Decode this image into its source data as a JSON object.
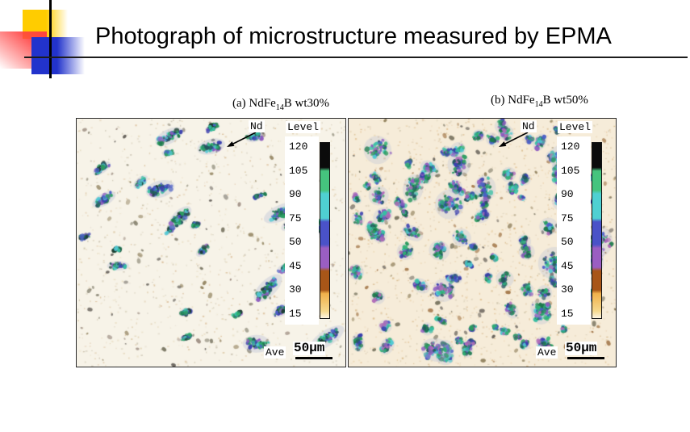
{
  "title": "Photograph of microstructure measured by EPMA",
  "decoration": {
    "yellow": "#ffcc00",
    "red": "#ff4040",
    "blue": "#2233cc",
    "line": "#000000"
  },
  "colorbar": {
    "stops": [
      "#0b0b0b 0%",
      "#0b0b0b 14%",
      "#45c47e 16%",
      "#45c47e 27%",
      "#4fd0d2 29%",
      "#4fd0d2 43%",
      "#4a52c8 45%",
      "#4a52c8 58%",
      "#9a5ec2 60%",
      "#9a5ec2 71%",
      "#a85618 73%",
      "#a85618 84%",
      "#f0b14b 86%",
      "#f6d98e 96%",
      "#fdf6e3 100%"
    ]
  },
  "panels": [
    {
      "caption": {
        "pre": "(a) NdFe",
        "sub": "14",
        "post": "B wt30%"
      },
      "nd_label": "Nd",
      "level_label": "Level",
      "level_ticks": [
        "120",
        "105",
        "90",
        "75",
        "50",
        "45",
        "30",
        "15"
      ],
      "ave_label": "Ave",
      "scale_label": "50µm",
      "render": {
        "seed": 11,
        "background": "#f7f3e8",
        "speckles": 1000,
        "speckle_colors": [
          "#e2d3b0",
          "#d4bd92",
          "#c2b79b",
          "#cfa877",
          "#b5ab96"
        ],
        "dots": 120,
        "dot_colors": [
          "#6e6a56",
          "#8a7a55",
          "#97867b",
          "#56514b"
        ],
        "blobs": 26,
        "big_blobs": 3,
        "len_min": 10,
        "len_max": 30,
        "ang_base": -25,
        "ang_var": 50,
        "aspect_min": 0.28,
        "aspect_var": 0.22,
        "halo": "#a9b4d2",
        "blob_colors": [
          "#2eb273",
          "#1d7a4c",
          "#37bfa4",
          "#52c9d3",
          "#4b5ec6",
          "#3a3fae",
          "#8e5cc0",
          "#24555e",
          "#2c9b60",
          "#1b3a2e"
        ]
      }
    },
    {
      "caption": {
        "pre": "(b) NdFe",
        "sub": "14",
        "post": "B wt50%"
      },
      "nd_label": "Nd",
      "level_label": "Level",
      "level_ticks": [
        "120",
        "105",
        "90",
        "75",
        "50",
        "45",
        "30",
        "15"
      ],
      "ave_label": "Ave",
      "scale_label": "50µm",
      "render": {
        "seed": 5,
        "background": "#f6ecd9",
        "speckles": 1400,
        "speckle_colors": [
          "#e8cc9e",
          "#dcb27a",
          "#cba368",
          "#bfb497",
          "#d9c2a2"
        ],
        "dots": 170,
        "dot_colors": [
          "#6e6a56",
          "#9a6a3a",
          "#8a7a55",
          "#56514b"
        ],
        "blobs": 95,
        "big_blobs": 14,
        "len_min": 6,
        "len_max": 20,
        "ang_base": 0,
        "ang_var": 360,
        "aspect_min": 0.5,
        "aspect_var": 0.35,
        "halo": "#b4bdd8",
        "blob_colors": [
          "#2eb273",
          "#1d7a4c",
          "#37bfa4",
          "#52c9d3",
          "#4b5ec6",
          "#3a3fae",
          "#8e5cc0",
          "#b06ab8",
          "#2c9b60",
          "#24555e"
        ]
      }
    }
  ]
}
